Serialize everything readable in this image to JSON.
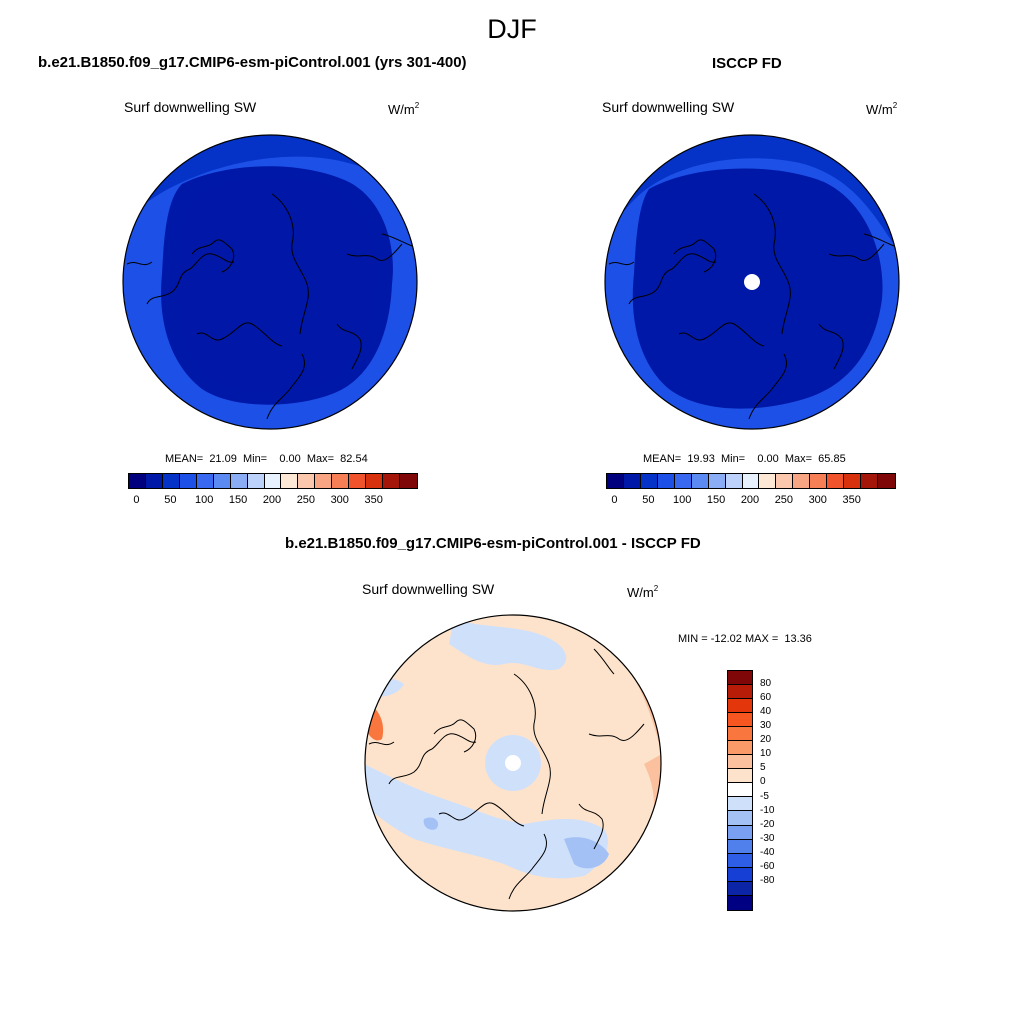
{
  "season": "DJF",
  "panels": [
    {
      "title": "b.e21.B1850.f09_g17.CMIP6-esm-piControl.001 (yrs 301-400)",
      "variable": "Surf downwelling SW",
      "units_base": "W/m",
      "units_exp": "2",
      "stats": "MEAN=  21.09  Min=    0.00  Max=  82.54",
      "has_pole_hole": false
    },
    {
      "title": "ISCCP FD",
      "variable": "Surf downwelling SW",
      "units_base": "W/m",
      "units_exp": "2",
      "stats": "MEAN=  19.93  Min=    0.00  Max=  65.85",
      "has_pole_hole": true
    }
  ],
  "abs_colorbar": {
    "colors": [
      "#00007f",
      "#0018a8",
      "#0533c8",
      "#1c50e6",
      "#3869f0",
      "#5b8af3",
      "#8aadf6",
      "#bcd2fa",
      "#e8f1fe",
      "#fde8d6",
      "#fbc8ae",
      "#f8a583",
      "#f67f56",
      "#f1542d",
      "#d8310e",
      "#a5160a",
      "#7f0707"
    ],
    "labels": [
      "0",
      "50",
      "100",
      "150",
      "200",
      "250",
      "300",
      "350"
    ]
  },
  "diff": {
    "title": "b.e21.B1850.f09_g17.CMIP6-esm-piControl.001 - ISCCP FD",
    "variable": "Surf downwelling SW",
    "units_base": "W/m",
    "units_exp": "2",
    "stats": "MIN = -12.02 MAX =  13.36",
    "colorbar": {
      "colors": [
        "#7f0707",
        "#b71c08",
        "#e3360b",
        "#f85620",
        "#f9773e",
        "#fa9a69",
        "#fbc09e",
        "#fde3cc",
        "#ffffff",
        "#cfe0fb",
        "#a4c1f6",
        "#7aa0f1",
        "#5080ec",
        "#2e5de6",
        "#163fd6",
        "#0c24a6",
        "#000082"
      ],
      "labels": [
        "80",
        "60",
        "40",
        "30",
        "20",
        "10",
        "5",
        "0",
        "-5",
        "-10",
        "-20",
        "-30",
        "-40",
        "-60",
        "-80"
      ]
    }
  },
  "colors": {
    "deep_blue": "#0018a8",
    "mid_blue": "#0533c8",
    "light_blue": "#1c50e6",
    "diff_positive": "#fde3cc",
    "diff_negative": "#cfe0fb"
  }
}
